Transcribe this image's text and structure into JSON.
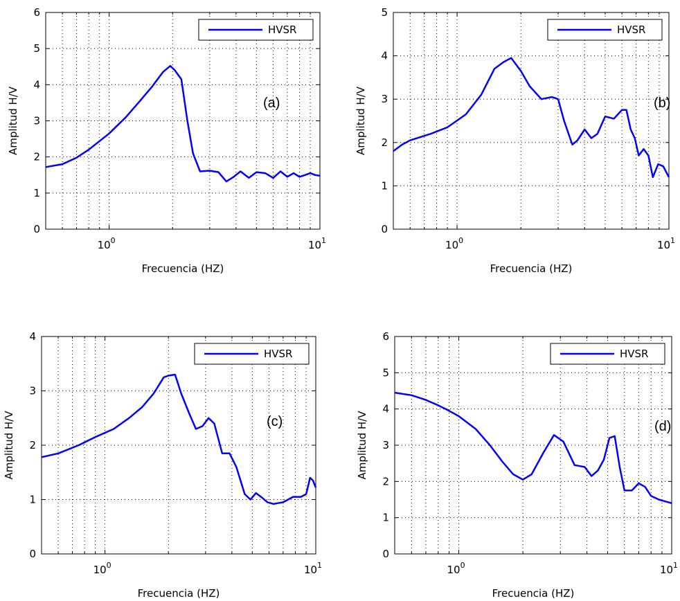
{
  "chart_data": [
    {
      "type": "line",
      "panel": "(a)",
      "xscale": "log",
      "xlim": [
        0.5,
        10
      ],
      "ylim": [
        0,
        6
      ],
      "yticks": [
        0,
        1,
        2,
        3,
        4,
        5,
        6
      ],
      "xticklabels": [
        "10^0",
        "10^1"
      ],
      "xlabel": "Frecuencia (HZ)",
      "ylabel": "Amplitud H/V",
      "grid": true,
      "legend": "top-right",
      "series": [
        {
          "name": "HVSR",
          "color": "#0000ff",
          "x": [
            0.5,
            0.6,
            0.7,
            0.8,
            1.0,
            1.2,
            1.4,
            1.6,
            1.8,
            1.95,
            2.05,
            2.2,
            2.35,
            2.5,
            2.7,
            3.0,
            3.3,
            3.6,
            3.9,
            4.2,
            4.6,
            5.0,
            5.5,
            6.0,
            6.5,
            7.0,
            7.5,
            8.0,
            8.5,
            9.0,
            9.5,
            10.0
          ],
          "y": [
            1.72,
            1.8,
            1.98,
            2.2,
            2.65,
            3.1,
            3.55,
            3.95,
            4.35,
            4.52,
            4.4,
            4.15,
            3.0,
            2.1,
            1.6,
            1.62,
            1.58,
            1.32,
            1.45,
            1.6,
            1.42,
            1.58,
            1.55,
            1.42,
            1.6,
            1.45,
            1.55,
            1.45,
            1.5,
            1.55,
            1.5,
            1.48
          ]
        }
      ]
    },
    {
      "type": "line",
      "panel": "(b)",
      "xscale": "log",
      "xlim": [
        0.5,
        10
      ],
      "ylim": [
        0,
        5
      ],
      "yticks": [
        0,
        1,
        2,
        3,
        4,
        5
      ],
      "xticklabels": [
        "10^0",
        "10^1"
      ],
      "xlabel": "Frecuencia (HZ)",
      "ylabel": "Amplitud H/V",
      "grid": true,
      "legend": "top-right",
      "series": [
        {
          "name": "HVSR",
          "color": "#0000ff",
          "x": [
            0.5,
            0.55,
            0.6,
            0.75,
            0.9,
            1.1,
            1.3,
            1.5,
            1.65,
            1.8,
            2.0,
            2.2,
            2.5,
            2.8,
            3.0,
            3.2,
            3.5,
            3.7,
            4.0,
            4.3,
            4.6,
            5.0,
            5.5,
            6.0,
            6.3,
            6.6,
            6.9,
            7.2,
            7.6,
            8.0,
            8.4,
            8.9,
            9.4,
            10.0
          ],
          "y": [
            1.8,
            1.95,
            2.05,
            2.2,
            2.35,
            2.65,
            3.1,
            3.7,
            3.85,
            3.95,
            3.65,
            3.3,
            3.0,
            3.05,
            3.0,
            2.5,
            1.95,
            2.05,
            2.3,
            2.1,
            2.2,
            2.6,
            2.55,
            2.75,
            2.75,
            2.3,
            2.1,
            1.7,
            1.85,
            1.7,
            1.2,
            1.5,
            1.45,
            1.2
          ]
        }
      ]
    },
    {
      "type": "line",
      "panel": "(c)",
      "xscale": "log",
      "xlim": [
        0.5,
        10
      ],
      "ylim": [
        0,
        4
      ],
      "yticks": [
        0,
        1,
        2,
        3,
        4
      ],
      "xticklabels": [
        "10^0",
        "10^1"
      ],
      "xlabel": "Frecuencia (HZ)",
      "ylabel": "Amplitud H/V",
      "grid": true,
      "legend": "top-right",
      "series": [
        {
          "name": "HVSR",
          "color": "#0000ff",
          "x": [
            0.5,
            0.6,
            0.75,
            0.9,
            1.1,
            1.3,
            1.5,
            1.7,
            1.9,
            2.0,
            2.15,
            2.3,
            2.5,
            2.7,
            2.9,
            3.1,
            3.3,
            3.6,
            3.9,
            4.2,
            4.6,
            4.9,
            5.2,
            5.5,
            5.9,
            6.3,
            7.0,
            7.8,
            8.5,
            9.0,
            9.4,
            9.7,
            10.0
          ],
          "y": [
            1.78,
            1.85,
            2.0,
            2.15,
            2.3,
            2.5,
            2.7,
            2.95,
            3.25,
            3.28,
            3.3,
            2.95,
            2.6,
            2.3,
            2.35,
            2.5,
            2.4,
            1.85,
            1.85,
            1.6,
            1.1,
            1.0,
            1.12,
            1.05,
            0.95,
            0.92,
            0.95,
            1.05,
            1.05,
            1.1,
            1.4,
            1.35,
            1.22
          ]
        }
      ]
    },
    {
      "type": "line",
      "panel": "(d)",
      "xscale": "log",
      "xlim": [
        0.5,
        10
      ],
      "ylim": [
        0,
        6
      ],
      "yticks": [
        0,
        1,
        2,
        3,
        4,
        5,
        6
      ],
      "xticklabels": [
        "10^0",
        "10^1"
      ],
      "xlabel": "Frecuencia (HZ)",
      "ylabel": "Amplitud H/V",
      "grid": true,
      "legend": "top-right",
      "series": [
        {
          "name": "HVSR",
          "color": "#0000ff",
          "x": [
            0.5,
            0.6,
            0.7,
            0.8,
            0.9,
            1.0,
            1.2,
            1.4,
            1.6,
            1.8,
            2.0,
            2.2,
            2.5,
            2.8,
            3.1,
            3.5,
            3.9,
            4.2,
            4.5,
            4.8,
            5.1,
            5.4,
            5.7,
            6.0,
            6.5,
            7.0,
            7.5,
            8.0,
            8.7,
            9.3,
            10.0
          ],
          "y": [
            4.45,
            4.38,
            4.25,
            4.1,
            3.95,
            3.8,
            3.45,
            3.0,
            2.55,
            2.2,
            2.05,
            2.2,
            2.8,
            3.28,
            3.1,
            2.45,
            2.4,
            2.15,
            2.3,
            2.6,
            3.2,
            3.25,
            2.4,
            1.75,
            1.75,
            1.95,
            1.85,
            1.6,
            1.5,
            1.45,
            1.4
          ]
        }
      ]
    }
  ]
}
